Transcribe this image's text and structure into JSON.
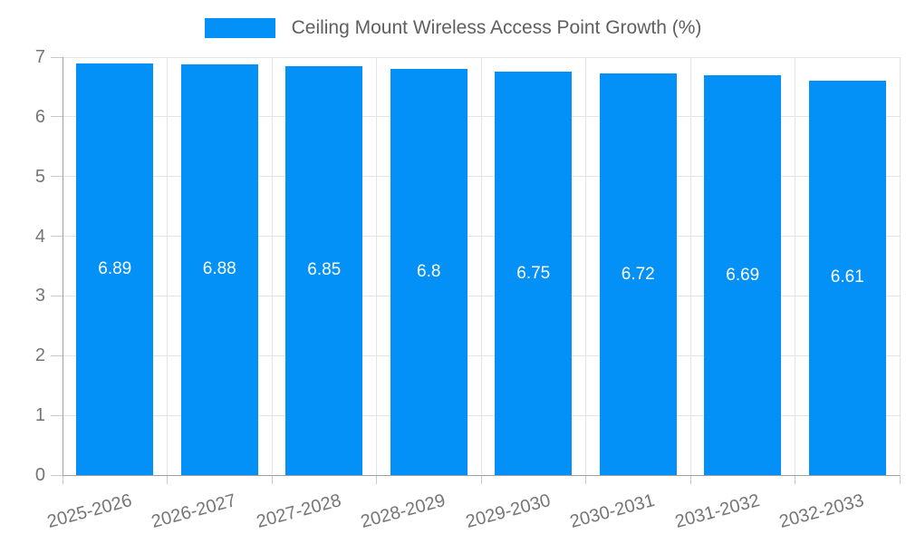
{
  "chart_data": {
    "type": "bar",
    "title": "Ceiling Mount Wireless Access Point Growth (%)",
    "categories": [
      "2025-2026",
      "2026-2027",
      "2027-2028",
      "2028-2029",
      "2029-2030",
      "2030-2031",
      "2031-2032",
      "2032-2033"
    ],
    "values": [
      6.89,
      6.88,
      6.85,
      6.8,
      6.75,
      6.72,
      6.69,
      6.61
    ],
    "bar_labels": [
      "6.89",
      "6.88",
      "6.85",
      "6.8",
      "6.75",
      "6.72",
      "6.69",
      "6.61"
    ],
    "xlabel": "",
    "ylabel": "",
    "ylim": [
      0,
      7
    ],
    "yticks": [
      0,
      1,
      2,
      3,
      4,
      5,
      6,
      7
    ],
    "grid": true,
    "legend_position": "top-center",
    "x_label_rotation_deg": -15,
    "colors": {
      "bar": "#0390f7",
      "bar_label": "#ffffff",
      "gridline": "#e4e4e4",
      "axis": "#a0a0a0",
      "tick": "#c9c9c9",
      "tick_label": "#757575",
      "legend_text": "#5f5f5f",
      "background": "#ffffff"
    }
  }
}
